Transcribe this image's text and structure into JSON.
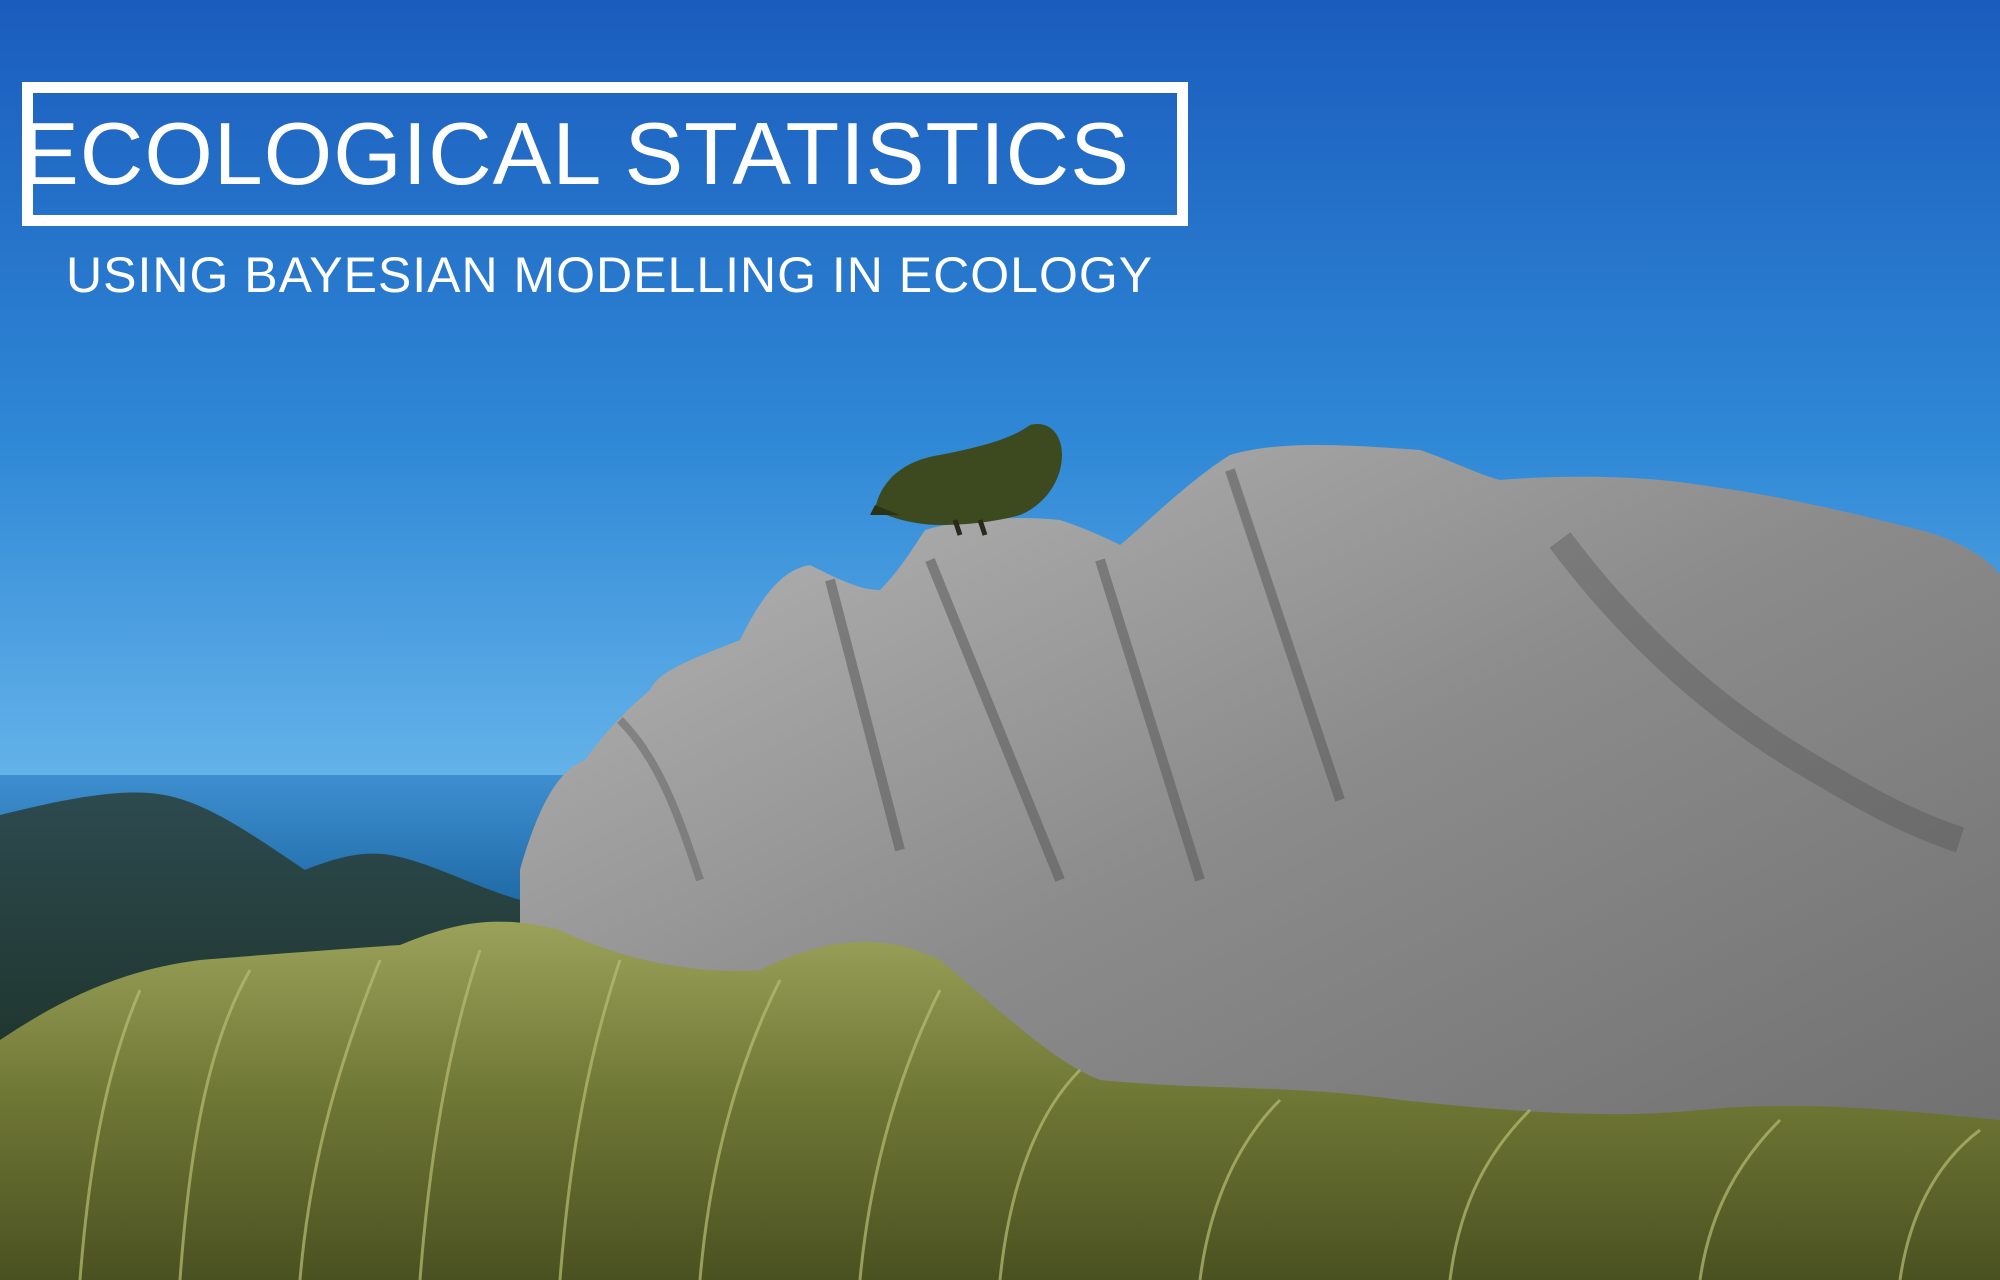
{
  "title": "ECOLOGICAL STATISTICS",
  "subtitle": "USING BAYESIAN MODELLING IN ECOLOGY",
  "colors": {
    "sky_top": "#1a5fbf",
    "sky_bottom": "#5aaee6",
    "sea": "#2f7fc4",
    "text": "#ffffff",
    "rock": "#8f8f8f",
    "grass": "#6f7a3a",
    "bird": "#3d4a1f"
  },
  "scene": {
    "subject": "kea-parrot-on-rock",
    "elements": [
      "sky",
      "sea",
      "mountains",
      "rock",
      "bird",
      "grass"
    ]
  }
}
